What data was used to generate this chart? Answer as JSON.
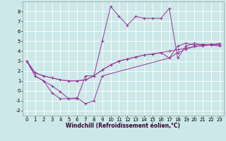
{
  "xlabel": "Windchill (Refroidissement éolien,°C)",
  "background_color": "#cce8e8",
  "grid_color": "#ffffff",
  "line_color": "#993399",
  "xlim": [
    -0.5,
    23.5
  ],
  "ylim": [
    -2.5,
    9.0
  ],
  "xticks": [
    0,
    1,
    2,
    3,
    4,
    5,
    6,
    7,
    8,
    9,
    10,
    11,
    12,
    13,
    14,
    15,
    16,
    17,
    18,
    19,
    20,
    21,
    22,
    23
  ],
  "yticks": [
    -2,
    -1,
    0,
    1,
    2,
    3,
    4,
    5,
    6,
    7,
    8
  ],
  "x_hours": [
    0,
    1,
    2,
    3,
    4,
    5,
    6,
    7,
    8,
    9,
    10,
    11,
    12,
    13,
    14,
    15,
    16,
    17,
    18,
    19,
    20,
    21,
    22,
    23
  ],
  "line1_y": [
    3.0,
    1.5,
    1.0,
    0.5,
    -0.1,
    -0.8,
    -0.8,
    1.5,
    1.5,
    5.0,
    8.5,
    7.5,
    6.6,
    7.5,
    7.3,
    7.3,
    7.3,
    8.3,
    3.3,
    4.5,
    4.8,
    4.6,
    4.7,
    4.6
  ],
  "line2_y": [
    3.0,
    1.8,
    1.5,
    1.3,
    1.1,
    1.0,
    1.0,
    1.1,
    1.5,
    2.1,
    2.6,
    3.0,
    3.2,
    3.4,
    3.6,
    3.7,
    3.85,
    4.0,
    4.15,
    4.3,
    4.45,
    4.55,
    4.65,
    4.75
  ],
  "line3_y": [
    3.0,
    1.8,
    1.5,
    1.3,
    1.1,
    1.0,
    1.0,
    1.1,
    1.5,
    2.1,
    2.6,
    3.0,
    3.2,
    3.4,
    3.6,
    3.7,
    3.85,
    3.3,
    3.85,
    4.2,
    4.45,
    4.55,
    4.65,
    4.75
  ],
  "line4_y": [
    3.0,
    1.5,
    1.0,
    -0.2,
    -0.8,
    -0.8,
    -0.7,
    -1.3,
    -1.0,
    1.5,
    null,
    null,
    null,
    null,
    null,
    null,
    null,
    3.3,
    4.5,
    4.8,
    4.6,
    4.7,
    4.6,
    4.5
  ],
  "tick_fontsize": 5,
  "xlabel_fontsize": 5.5
}
